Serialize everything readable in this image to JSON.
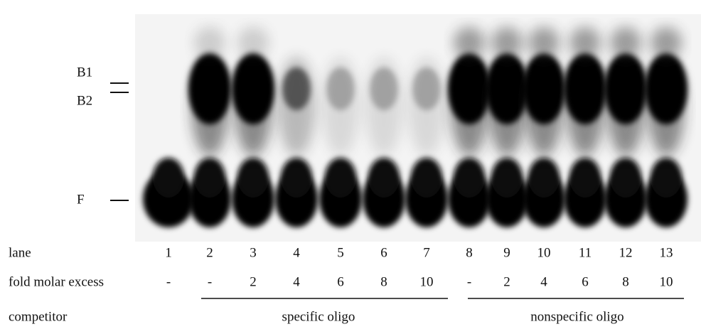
{
  "markers": [
    {
      "label": "B1"
    },
    {
      "label": "B2"
    },
    {
      "label": "F"
    }
  ],
  "rows": {
    "lane": {
      "label": "lane",
      "values": [
        "1",
        "2",
        "3",
        "4",
        "5",
        "6",
        "7",
        "8",
        "9",
        "10",
        "11",
        "12",
        "13"
      ]
    },
    "fold": {
      "label": "fold molar excess",
      "values": [
        "-",
        "-",
        "2",
        "4",
        "6",
        "8",
        "10",
        "-",
        "2",
        "4",
        "6",
        "8",
        "10"
      ]
    },
    "competitor": {
      "label": "competitor",
      "groups": [
        "specific oligo",
        "nonspecific oligo"
      ]
    }
  }
}
